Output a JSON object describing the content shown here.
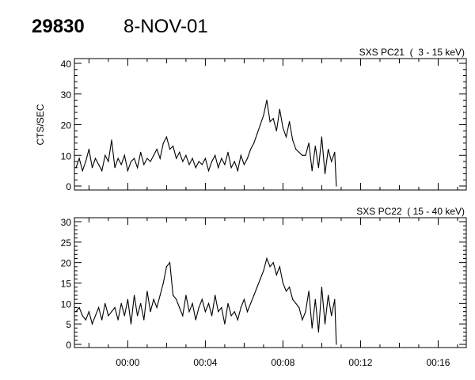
{
  "header": {
    "id": "29830",
    "date": "8-NOV-01"
  },
  "chart_data": [
    {
      "type": "line",
      "title": "SXS PC21  (  3 - 15 keV)",
      "ylabel": "CTS/SEC",
      "ylim": [
        0,
        40
      ],
      "yticks": [
        "0",
        "10",
        "20",
        "30",
        "40"
      ],
      "xlim": [
        "23:57:15",
        "00:17:27"
      ],
      "xticks": [
        "00:00",
        "00:04",
        "00:08",
        "00:12",
        "00:16"
      ],
      "show_xtick_labels": false,
      "x": [
        "23:57:20",
        "23:57:30",
        "23:57:40",
        "23:57:50",
        "23:58:00",
        "23:58:10",
        "23:58:20",
        "23:58:30",
        "23:58:40",
        "23:58:50",
        "23:59:00",
        "23:59:10",
        "23:59:20",
        "23:59:30",
        "23:59:40",
        "23:59:50",
        "00:00:00",
        "00:00:10",
        "00:00:20",
        "00:00:30",
        "00:00:40",
        "00:00:50",
        "00:01:00",
        "00:01:10",
        "00:01:20",
        "00:01:30",
        "00:01:40",
        "00:01:50",
        "00:02:00",
        "00:02:10",
        "00:02:20",
        "00:02:30",
        "00:02:40",
        "00:02:50",
        "00:03:00",
        "00:03:10",
        "00:03:20",
        "00:03:30",
        "00:03:40",
        "00:03:50",
        "00:04:00",
        "00:04:10",
        "00:04:20",
        "00:04:30",
        "00:04:40",
        "00:04:50",
        "00:05:00",
        "00:05:10",
        "00:05:20",
        "00:05:30",
        "00:05:40",
        "00:05:50",
        "00:06:00",
        "00:06:10",
        "00:06:20",
        "00:06:30",
        "00:06:40",
        "00:06:50",
        "00:07:00",
        "00:07:10",
        "00:07:20",
        "00:07:30",
        "00:07:40",
        "00:07:50",
        "00:08:00",
        "00:08:10",
        "00:08:20",
        "00:08:30",
        "00:08:40",
        "00:08:50",
        "00:09:00",
        "00:09:10",
        "00:09:20",
        "00:09:30",
        "00:09:40",
        "00:09:50",
        "00:10:00",
        "00:10:10",
        "00:10:20",
        "00:10:30",
        "00:10:40",
        "00:10:45"
      ],
      "values": [
        6,
        9,
        5,
        8,
        12,
        6,
        9,
        7,
        5,
        10,
        8,
        15,
        6,
        9,
        7,
        10,
        5,
        8,
        9,
        6,
        11,
        7,
        9,
        8,
        10,
        12,
        9,
        14,
        16,
        12,
        13,
        9,
        11,
        8,
        10,
        7,
        9,
        6,
        8,
        7,
        9,
        5,
        8,
        10,
        6,
        9,
        7,
        11,
        6,
        8,
        5,
        10,
        7,
        9,
        12,
        14,
        17,
        20,
        23,
        28,
        21,
        22,
        18,
        25,
        19,
        16,
        21,
        15,
        12,
        11,
        10,
        10,
        14,
        5,
        13,
        6,
        16,
        4,
        12,
        8,
        11,
        0
      ]
    },
    {
      "type": "line",
      "title": "SXS PC22  ( 15 - 40 keV)",
      "ylabel": "",
      "ylim": [
        0,
        30
      ],
      "yticks": [
        "0",
        "5",
        "10",
        "15",
        "20",
        "25",
        "30"
      ],
      "xlim": [
        "23:57:15",
        "00:17:27"
      ],
      "xticks": [
        "00:00",
        "00:04",
        "00:08",
        "00:12",
        "00:16"
      ],
      "show_xtick_labels": true,
      "x": [
        "23:57:20",
        "23:57:30",
        "23:57:40",
        "23:57:50",
        "23:58:00",
        "23:58:10",
        "23:58:20",
        "23:58:30",
        "23:58:40",
        "23:58:50",
        "23:59:00",
        "23:59:10",
        "23:59:20",
        "23:59:30",
        "23:59:40",
        "23:59:50",
        "00:00:00",
        "00:00:10",
        "00:00:20",
        "00:00:30",
        "00:00:40",
        "00:00:50",
        "00:01:00",
        "00:01:10",
        "00:01:20",
        "00:01:30",
        "00:01:40",
        "00:01:50",
        "00:02:00",
        "00:02:10",
        "00:02:20",
        "00:02:30",
        "00:02:40",
        "00:02:50",
        "00:03:00",
        "00:03:10",
        "00:03:20",
        "00:03:30",
        "00:03:40",
        "00:03:50",
        "00:04:00",
        "00:04:10",
        "00:04:20",
        "00:04:30",
        "00:04:40",
        "00:04:50",
        "00:05:00",
        "00:05:10",
        "00:05:20",
        "00:05:30",
        "00:05:40",
        "00:05:50",
        "00:06:00",
        "00:06:10",
        "00:06:20",
        "00:06:30",
        "00:06:40",
        "00:06:50",
        "00:07:00",
        "00:07:10",
        "00:07:20",
        "00:07:30",
        "00:07:40",
        "00:07:50",
        "00:08:00",
        "00:08:10",
        "00:08:20",
        "00:08:30",
        "00:08:40",
        "00:08:50",
        "00:09:00",
        "00:09:10",
        "00:09:20",
        "00:09:30",
        "00:09:40",
        "00:09:50",
        "00:10:00",
        "00:10:10",
        "00:10:20",
        "00:10:30",
        "00:10:40",
        "00:10:45"
      ],
      "values": [
        8,
        9,
        7,
        6,
        8,
        5,
        7,
        9,
        6,
        10,
        7,
        8,
        9,
        6,
        10,
        7,
        11,
        5,
        12,
        7,
        10,
        6,
        13,
        8,
        11,
        9,
        12,
        15,
        19,
        20,
        12,
        11,
        9,
        7,
        12,
        8,
        10,
        6,
        9,
        11,
        8,
        10,
        7,
        12,
        8,
        9,
        5,
        10,
        7,
        8,
        6,
        9,
        11,
        8,
        10,
        12,
        14,
        16,
        18,
        21,
        19,
        20,
        17,
        19,
        15,
        13,
        14,
        11,
        10,
        9,
        6,
        8,
        13,
        4,
        11,
        3,
        14,
        5,
        12,
        7,
        11,
        0
      ]
    }
  ]
}
